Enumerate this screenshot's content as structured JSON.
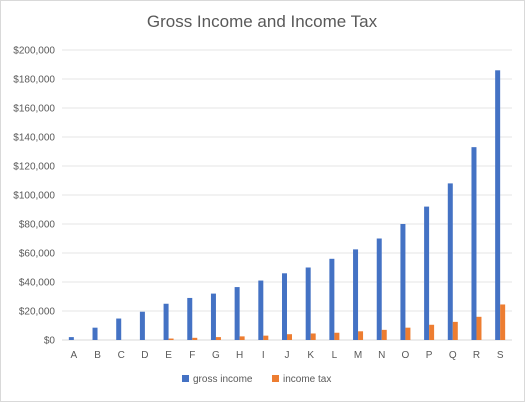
{
  "chart_data": {
    "type": "bar",
    "title": "Gross Income and Income Tax",
    "xlabel": "",
    "ylabel": "",
    "categories": [
      "A",
      "B",
      "C",
      "D",
      "E",
      "F",
      "G",
      "H",
      "I",
      "J",
      "K",
      "L",
      "M",
      "N",
      "O",
      "P",
      "Q",
      "R",
      "S"
    ],
    "series": [
      {
        "name": "gross income",
        "color": "#4472c4",
        "values": [
          2000,
          8500,
          14800,
          19500,
          25000,
          29000,
          32000,
          36500,
          41000,
          46000,
          50000,
          56000,
          62500,
          70000,
          80000,
          92000,
          108000,
          133000,
          186000
        ]
      },
      {
        "name": "income tax",
        "color": "#ed7d31",
        "values": [
          0,
          0,
          0,
          0,
          1000,
          1500,
          2000,
          2500,
          3000,
          4000,
          4500,
          5000,
          6000,
          7000,
          8500,
          10500,
          12500,
          16000,
          24500
        ]
      }
    ],
    "ylim": [
      0,
      200000
    ],
    "ytick_labels": [
      "$0",
      "$20,000",
      "$40,000",
      "$60,000",
      "$80,000",
      "$100,000",
      "$120,000",
      "$140,000",
      "$160,000",
      "$180,000",
      "$200,000"
    ],
    "ytick_values": [
      0,
      20000,
      40000,
      60000,
      80000,
      100000,
      120000,
      140000,
      160000,
      180000,
      200000
    ],
    "grid": true,
    "legend_position": "bottom"
  }
}
